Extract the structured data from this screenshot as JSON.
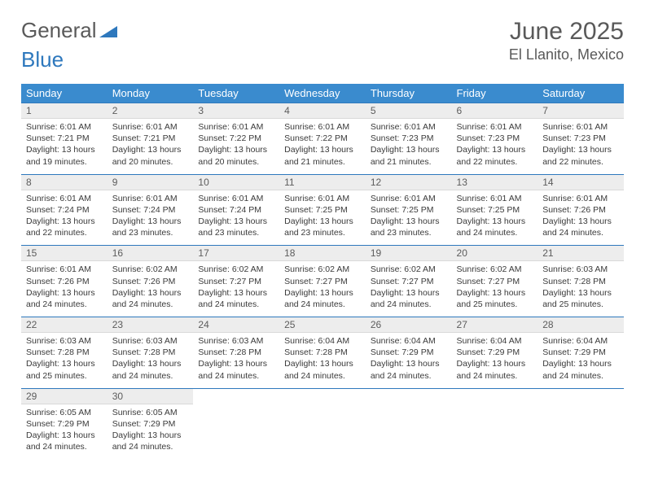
{
  "logo": {
    "part1": "General",
    "part2": "Blue"
  },
  "title": "June 2025",
  "location": "El Llanito, Mexico",
  "colors": {
    "header_bg": "#3a8bce",
    "header_text": "#ffffff",
    "border": "#2e78bd",
    "daynum_bg": "#ededed",
    "text": "#3a3a3a",
    "title_color": "#595959"
  },
  "day_names": [
    "Sunday",
    "Monday",
    "Tuesday",
    "Wednesday",
    "Thursday",
    "Friday",
    "Saturday"
  ],
  "weeks": [
    [
      {
        "n": "1",
        "sr": "Sunrise: 6:01 AM",
        "ss": "Sunset: 7:21 PM",
        "d1": "Daylight: 13 hours",
        "d2": "and 19 minutes."
      },
      {
        "n": "2",
        "sr": "Sunrise: 6:01 AM",
        "ss": "Sunset: 7:21 PM",
        "d1": "Daylight: 13 hours",
        "d2": "and 20 minutes."
      },
      {
        "n": "3",
        "sr": "Sunrise: 6:01 AM",
        "ss": "Sunset: 7:22 PM",
        "d1": "Daylight: 13 hours",
        "d2": "and 20 minutes."
      },
      {
        "n": "4",
        "sr": "Sunrise: 6:01 AM",
        "ss": "Sunset: 7:22 PM",
        "d1": "Daylight: 13 hours",
        "d2": "and 21 minutes."
      },
      {
        "n": "5",
        "sr": "Sunrise: 6:01 AM",
        "ss": "Sunset: 7:23 PM",
        "d1": "Daylight: 13 hours",
        "d2": "and 21 minutes."
      },
      {
        "n": "6",
        "sr": "Sunrise: 6:01 AM",
        "ss": "Sunset: 7:23 PM",
        "d1": "Daylight: 13 hours",
        "d2": "and 22 minutes."
      },
      {
        "n": "7",
        "sr": "Sunrise: 6:01 AM",
        "ss": "Sunset: 7:23 PM",
        "d1": "Daylight: 13 hours",
        "d2": "and 22 minutes."
      }
    ],
    [
      {
        "n": "8",
        "sr": "Sunrise: 6:01 AM",
        "ss": "Sunset: 7:24 PM",
        "d1": "Daylight: 13 hours",
        "d2": "and 22 minutes."
      },
      {
        "n": "9",
        "sr": "Sunrise: 6:01 AM",
        "ss": "Sunset: 7:24 PM",
        "d1": "Daylight: 13 hours",
        "d2": "and 23 minutes."
      },
      {
        "n": "10",
        "sr": "Sunrise: 6:01 AM",
        "ss": "Sunset: 7:24 PM",
        "d1": "Daylight: 13 hours",
        "d2": "and 23 minutes."
      },
      {
        "n": "11",
        "sr": "Sunrise: 6:01 AM",
        "ss": "Sunset: 7:25 PM",
        "d1": "Daylight: 13 hours",
        "d2": "and 23 minutes."
      },
      {
        "n": "12",
        "sr": "Sunrise: 6:01 AM",
        "ss": "Sunset: 7:25 PM",
        "d1": "Daylight: 13 hours",
        "d2": "and 23 minutes."
      },
      {
        "n": "13",
        "sr": "Sunrise: 6:01 AM",
        "ss": "Sunset: 7:25 PM",
        "d1": "Daylight: 13 hours",
        "d2": "and 24 minutes."
      },
      {
        "n": "14",
        "sr": "Sunrise: 6:01 AM",
        "ss": "Sunset: 7:26 PM",
        "d1": "Daylight: 13 hours",
        "d2": "and 24 minutes."
      }
    ],
    [
      {
        "n": "15",
        "sr": "Sunrise: 6:01 AM",
        "ss": "Sunset: 7:26 PM",
        "d1": "Daylight: 13 hours",
        "d2": "and 24 minutes."
      },
      {
        "n": "16",
        "sr": "Sunrise: 6:02 AM",
        "ss": "Sunset: 7:26 PM",
        "d1": "Daylight: 13 hours",
        "d2": "and 24 minutes."
      },
      {
        "n": "17",
        "sr": "Sunrise: 6:02 AM",
        "ss": "Sunset: 7:27 PM",
        "d1": "Daylight: 13 hours",
        "d2": "and 24 minutes."
      },
      {
        "n": "18",
        "sr": "Sunrise: 6:02 AM",
        "ss": "Sunset: 7:27 PM",
        "d1": "Daylight: 13 hours",
        "d2": "and 24 minutes."
      },
      {
        "n": "19",
        "sr": "Sunrise: 6:02 AM",
        "ss": "Sunset: 7:27 PM",
        "d1": "Daylight: 13 hours",
        "d2": "and 24 minutes."
      },
      {
        "n": "20",
        "sr": "Sunrise: 6:02 AM",
        "ss": "Sunset: 7:27 PM",
        "d1": "Daylight: 13 hours",
        "d2": "and 25 minutes."
      },
      {
        "n": "21",
        "sr": "Sunrise: 6:03 AM",
        "ss": "Sunset: 7:28 PM",
        "d1": "Daylight: 13 hours",
        "d2": "and 25 minutes."
      }
    ],
    [
      {
        "n": "22",
        "sr": "Sunrise: 6:03 AM",
        "ss": "Sunset: 7:28 PM",
        "d1": "Daylight: 13 hours",
        "d2": "and 25 minutes."
      },
      {
        "n": "23",
        "sr": "Sunrise: 6:03 AM",
        "ss": "Sunset: 7:28 PM",
        "d1": "Daylight: 13 hours",
        "d2": "and 24 minutes."
      },
      {
        "n": "24",
        "sr": "Sunrise: 6:03 AM",
        "ss": "Sunset: 7:28 PM",
        "d1": "Daylight: 13 hours",
        "d2": "and 24 minutes."
      },
      {
        "n": "25",
        "sr": "Sunrise: 6:04 AM",
        "ss": "Sunset: 7:28 PM",
        "d1": "Daylight: 13 hours",
        "d2": "and 24 minutes."
      },
      {
        "n": "26",
        "sr": "Sunrise: 6:04 AM",
        "ss": "Sunset: 7:29 PM",
        "d1": "Daylight: 13 hours",
        "d2": "and 24 minutes."
      },
      {
        "n": "27",
        "sr": "Sunrise: 6:04 AM",
        "ss": "Sunset: 7:29 PM",
        "d1": "Daylight: 13 hours",
        "d2": "and 24 minutes."
      },
      {
        "n": "28",
        "sr": "Sunrise: 6:04 AM",
        "ss": "Sunset: 7:29 PM",
        "d1": "Daylight: 13 hours",
        "d2": "and 24 minutes."
      }
    ],
    [
      {
        "n": "29",
        "sr": "Sunrise: 6:05 AM",
        "ss": "Sunset: 7:29 PM",
        "d1": "Daylight: 13 hours",
        "d2": "and 24 minutes."
      },
      {
        "n": "30",
        "sr": "Sunrise: 6:05 AM",
        "ss": "Sunset: 7:29 PM",
        "d1": "Daylight: 13 hours",
        "d2": "and 24 minutes."
      },
      {
        "empty": true
      },
      {
        "empty": true
      },
      {
        "empty": true
      },
      {
        "empty": true
      },
      {
        "empty": true
      }
    ]
  ]
}
